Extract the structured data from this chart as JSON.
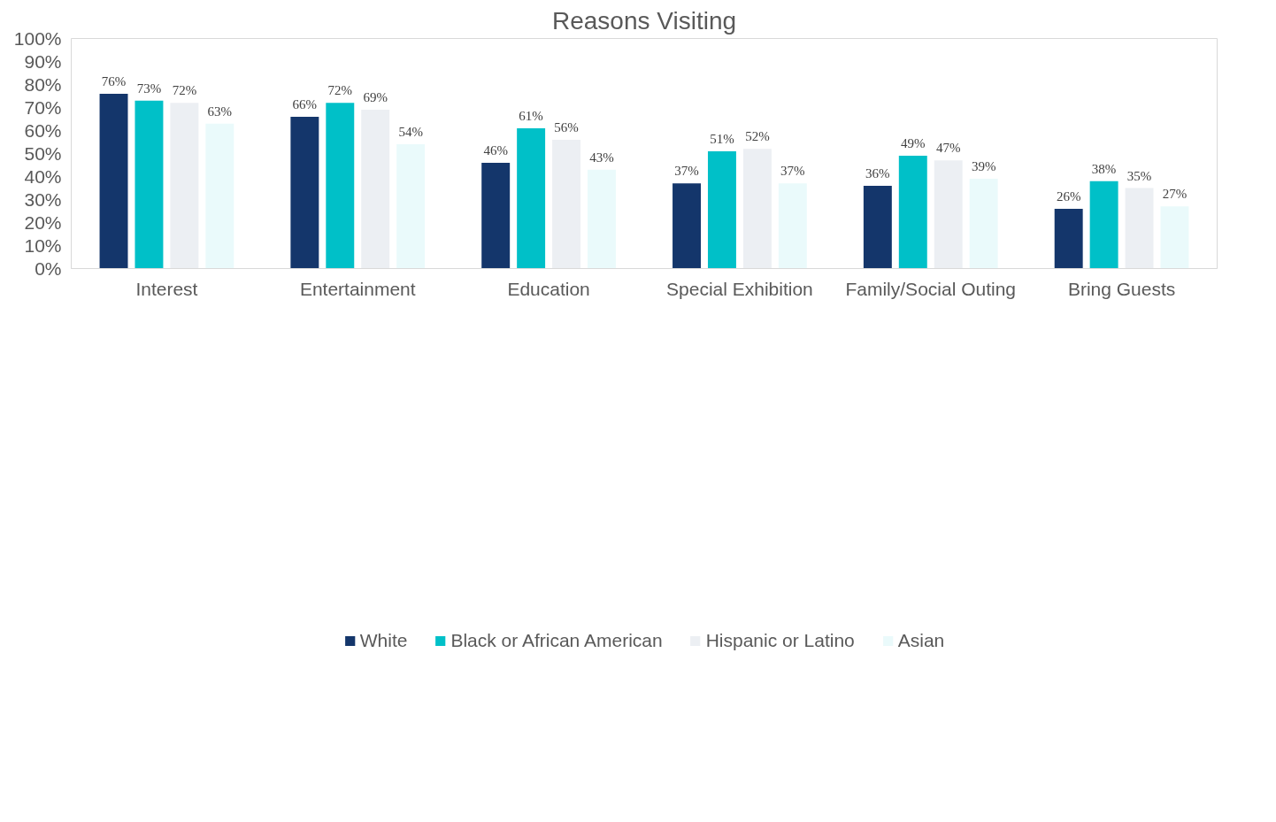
{
  "chart_data": {
    "type": "bar",
    "title": "Reasons Visiting",
    "categories": [
      "Interest",
      "Entertainment",
      "Education",
      "Special Exhibition",
      "Family/Social Outing",
      "Bring Guests"
    ],
    "series": [
      {
        "name": "White",
        "color": "#14366b",
        "values": [
          76,
          66,
          46,
          37,
          36,
          26
        ],
        "value_labels": [
          "76%",
          "66%",
          "46%",
          "37%",
          "36%",
          "26%"
        ]
      },
      {
        "name": "Black or African American",
        "color": "#00c0c8",
        "values": [
          73,
          72,
          61,
          51,
          49,
          38
        ],
        "value_labels": [
          "73%",
          "72%",
          "61%",
          "51%",
          "49%",
          "38%"
        ]
      },
      {
        "name": "Hispanic or Latino",
        "color": "#eceff3",
        "values": [
          72,
          69,
          56,
          52,
          47,
          35
        ],
        "value_labels": [
          "72%",
          "69%",
          "56%",
          "52%",
          "47%",
          "35%"
        ]
      },
      {
        "name": "Asian",
        "color": "#eafafb",
        "values": [
          63,
          54,
          43,
          37,
          39,
          27
        ],
        "value_labels": [
          "63%",
          "54%",
          "43%",
          "37%",
          "39%",
          "27%"
        ]
      }
    ],
    "ylim": [
      0,
      100
    ],
    "yticks": [
      {
        "value": 0,
        "label": "0%"
      },
      {
        "value": 10,
        "label": "10%"
      },
      {
        "value": 20,
        "label": "20%"
      },
      {
        "value": 30,
        "label": "30%"
      },
      {
        "value": 40,
        "label": "40%"
      },
      {
        "value": 50,
        "label": "50%"
      },
      {
        "value": 60,
        "label": "60%"
      },
      {
        "value": 70,
        "label": "70%"
      },
      {
        "value": 80,
        "label": "80%"
      },
      {
        "value": 90,
        "label": "90%"
      },
      {
        "value": 100,
        "label": "100%"
      }
    ],
    "grid": false,
    "legend": "bottom"
  }
}
